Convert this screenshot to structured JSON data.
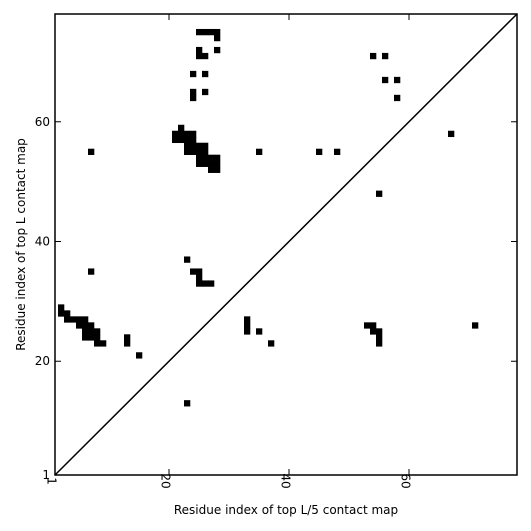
{
  "chart_data": {
    "type": "heatmap",
    "title": "",
    "xlabel": "Residue index of top L/5 contact map",
    "ylabel": "Residue index of top L contact map",
    "xlim": [
      1,
      78
    ],
    "ylim": [
      1,
      78
    ],
    "x_ticks": [
      1,
      20,
      40,
      60
    ],
    "y_ticks": [
      1,
      20,
      40,
      60
    ],
    "x_tick_labels": [
      "1",
      "20",
      "40",
      "60"
    ],
    "y_tick_labels": [
      "1",
      "20",
      "40",
      "60"
    ],
    "grid": false,
    "diagonal": true,
    "colors": {
      "contact": "#000000",
      "frame": "#000000",
      "background": "#ffffff"
    },
    "contacts": [
      [
        25,
        75
      ],
      [
        26,
        75
      ],
      [
        27,
        75
      ],
      [
        28,
        74
      ],
      [
        28,
        75
      ],
      [
        25,
        72
      ],
      [
        25,
        71
      ],
      [
        26,
        71
      ],
      [
        28,
        72
      ],
      [
        24,
        68
      ],
      [
        26,
        68
      ],
      [
        24,
        65
      ],
      [
        24,
        64
      ],
      [
        26,
        65
      ],
      [
        22,
        59
      ],
      [
        21,
        58
      ],
      [
        22,
        58
      ],
      [
        23,
        58
      ],
      [
        24,
        58
      ],
      [
        21,
        57
      ],
      [
        22,
        57
      ],
      [
        23,
        57
      ],
      [
        24,
        57
      ],
      [
        23,
        56
      ],
      [
        24,
        56
      ],
      [
        25,
        56
      ],
      [
        26,
        56
      ],
      [
        23,
        55
      ],
      [
        24,
        55
      ],
      [
        25,
        55
      ],
      [
        26,
        55
      ],
      [
        25,
        54
      ],
      [
        26,
        54
      ],
      [
        27,
        54
      ],
      [
        28,
        54
      ],
      [
        25,
        53
      ],
      [
        26,
        53
      ],
      [
        27,
        53
      ],
      [
        28,
        53
      ],
      [
        27,
        52
      ],
      [
        28,
        52
      ],
      [
        7,
        55
      ],
      [
        35,
        55
      ],
      [
        45,
        55
      ],
      [
        48,
        55
      ],
      [
        54,
        71
      ],
      [
        56,
        71
      ],
      [
        56,
        67
      ],
      [
        58,
        67
      ],
      [
        58,
        64
      ],
      [
        67,
        58
      ],
      [
        55,
        48
      ],
      [
        23,
        37
      ],
      [
        7,
        35
      ],
      [
        24,
        35
      ],
      [
        25,
        35
      ],
      [
        25,
        34
      ],
      [
        25,
        33
      ],
      [
        26,
        33
      ],
      [
        27,
        33
      ],
      [
        2,
        29
      ],
      [
        2,
        28
      ],
      [
        3,
        28
      ],
      [
        3,
        27
      ],
      [
        4,
        27
      ],
      [
        5,
        27
      ],
      [
        6,
        27
      ],
      [
        5,
        26
      ],
      [
        6,
        26
      ],
      [
        7,
        26
      ],
      [
        6,
        25
      ],
      [
        7,
        25
      ],
      [
        8,
        25
      ],
      [
        6,
        24
      ],
      [
        7,
        24
      ],
      [
        8,
        24
      ],
      [
        8,
        23
      ],
      [
        9,
        23
      ],
      [
        13,
        24
      ],
      [
        13,
        23
      ],
      [
        15,
        21
      ],
      [
        33,
        27
      ],
      [
        33,
        26
      ],
      [
        33,
        25
      ],
      [
        35,
        25
      ],
      [
        37,
        23
      ],
      [
        53,
        26
      ],
      [
        54,
        26
      ],
      [
        54,
        25
      ],
      [
        55,
        25
      ],
      [
        55,
        24
      ],
      [
        55,
        23
      ],
      [
        71,
        26
      ],
      [
        23,
        13
      ]
    ]
  }
}
